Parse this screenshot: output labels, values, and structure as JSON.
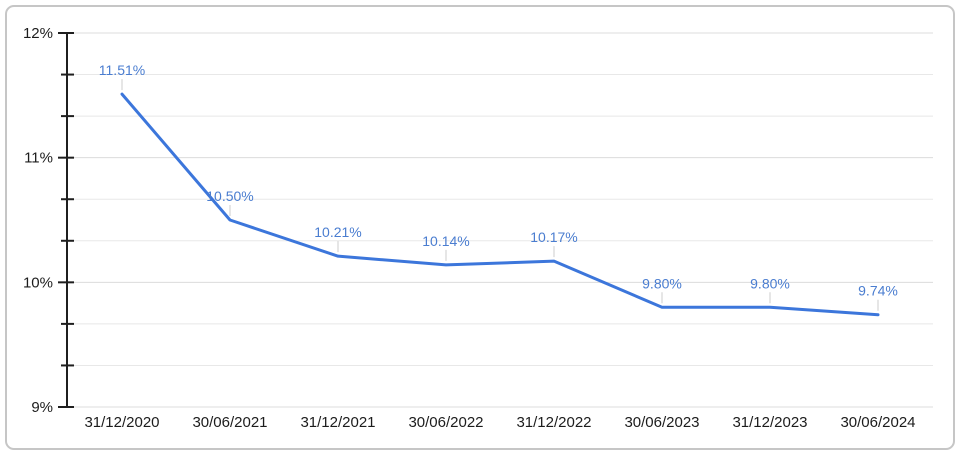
{
  "chart_data": {
    "type": "line",
    "title": "",
    "xlabel": "",
    "ylabel": "",
    "categories": [
      "31/12/2020",
      "30/06/2021",
      "31/12/2021",
      "30/06/2022",
      "31/12/2022",
      "30/06/2023",
      "31/12/2023",
      "30/06/2024"
    ],
    "values": [
      11.51,
      10.5,
      10.21,
      10.14,
      10.17,
      9.8,
      9.8,
      9.74
    ],
    "data_labels": [
      "11.51%",
      "10.50%",
      "10.21%",
      "10.14%",
      "10.17%",
      "9.80%",
      "9.80%",
      "9.74%"
    ],
    "ylim": [
      9,
      12
    ],
    "y_tick_labels": [
      "12%",
      "11%",
      "10%",
      "9%"
    ],
    "y_major_step": 1,
    "y_minor_per_major": 3,
    "grid": true,
    "legend": "none",
    "colors": {
      "line": "#3c76db",
      "data_label": "#4a7dd0",
      "axis": "#1f1f1f",
      "tick_text": "#1c1c1c",
      "gridline_minor": "#e8e8e8",
      "gridline_major": "#dcdcdc",
      "label_connector": "#cccccc",
      "frame_border": "#c6c6c6",
      "background": "#ffffff"
    }
  }
}
